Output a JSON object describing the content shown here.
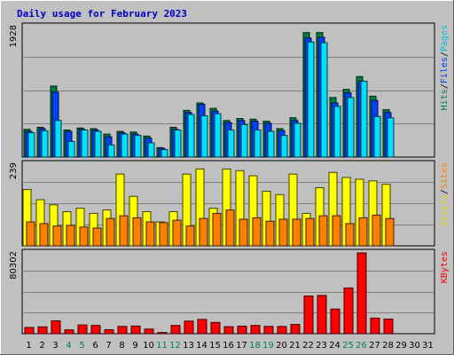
{
  "chart_data": {
    "title": "Daily usage for February 2023",
    "type": "bar",
    "x_ticks": [
      "1",
      "2",
      "3",
      "4",
      "5",
      "6",
      "7",
      "8",
      "9",
      "10",
      "11",
      "12",
      "13",
      "14",
      "15",
      "16",
      "17",
      "18",
      "19",
      "20",
      "21",
      "22",
      "23",
      "24",
      "25",
      "26",
      "27",
      "28",
      "29",
      "30",
      "31"
    ],
    "weekend_days": [
      "4",
      "5",
      "11",
      "12",
      "18",
      "19",
      "25",
      "26"
    ],
    "colors": {
      "hits": "#008040",
      "files": "#0040ff",
      "pages": "#00e0ff",
      "visits": "#ffff00",
      "sites": "#ff8000",
      "kbytes": "#ff0000",
      "weekday_tick": "#000000",
      "weekend_tick": "#00805c"
    },
    "panels": [
      {
        "name": "hits-files-pages",
        "ymax_label": "1928",
        "ymax": 1928,
        "legend": [
          {
            "text": "Pages",
            "color": "#00c0e0"
          },
          {
            "text": "Files",
            "color": "#0040ff"
          },
          {
            "text": "Hits",
            "color": "#008040"
          }
        ],
        "series": [
          {
            "name": "Hits",
            "color": "#008040",
            "values": [
              410,
              440,
              1050,
              400,
              430,
              420,
              340,
              380,
              370,
              310,
              140,
              440,
              690,
              800,
              720,
              540,
              570,
              560,
              530,
              420,
              580,
              1840,
              1840,
              880,
              1000,
              1190,
              900,
              700
            ]
          },
          {
            "name": "Files",
            "color": "#0040ff",
            "values": [
              380,
              420,
              960,
              380,
              410,
              400,
              300,
              360,
              340,
              280,
              130,
              410,
              660,
              780,
              680,
              510,
              540,
              530,
              500,
              390,
              540,
              1760,
              1770,
              800,
              950,
              1120,
              840,
              660
            ]
          },
          {
            "name": "Pages",
            "color": "#00e0ff",
            "values": [
              360,
              390,
              540,
              230,
              400,
              380,
              180,
              340,
              320,
              210,
              110,
              400,
              630,
              610,
              640,
              400,
              480,
              400,
              380,
              320,
              500,
              1700,
              1690,
              750,
              880,
              1120,
              600,
              580
            ]
          }
        ]
      },
      {
        "name": "visits-sites",
        "ymax_label": "239",
        "ymax": 239,
        "legend": [
          {
            "text": "Sites",
            "color": "#ff8000"
          },
          {
            "text": "Visits",
            "color": "#e0e000"
          }
        ],
        "series": [
          {
            "name": "Visits",
            "color": "#ffff00",
            "values": [
              165,
              135,
              120,
              100,
              110,
              95,
              105,
              210,
              145,
              100,
              70,
              100,
              210,
              225,
              110,
              225,
              220,
              205,
              160,
              150,
              210,
              95,
              170,
              215,
              200,
              195,
              190,
              180
            ]
          },
          {
            "name": "Sites",
            "color": "#ff8000",
            "values": [
              70,
              65,
              58,
              60,
              55,
              52,
              80,
              88,
              82,
              70,
              68,
              75,
              58,
              80,
              95,
              105,
              78,
              82,
              72,
              78,
              78,
              80,
              88,
              88,
              65,
              82,
              90,
              80
            ]
          }
        ]
      },
      {
        "name": "kbytes",
        "ymax_label": "80302",
        "ymax": 80302,
        "legend": [
          {
            "text": "KBytes",
            "color": "#ff0000"
          }
        ],
        "series": [
          {
            "name": "KBytes",
            "color": "#ff0000",
            "values": [
              6200,
              6800,
              12800,
              3800,
              8700,
              8200,
              4000,
              7200,
              7600,
              4600,
              1200,
              8200,
              12500,
              14200,
              11200,
              7000,
              7500,
              8200,
              7200,
              7200,
              9200,
              37500,
              38000,
              24500,
              45500,
              80302,
              15500,
              14500
            ]
          }
        ]
      }
    ]
  }
}
